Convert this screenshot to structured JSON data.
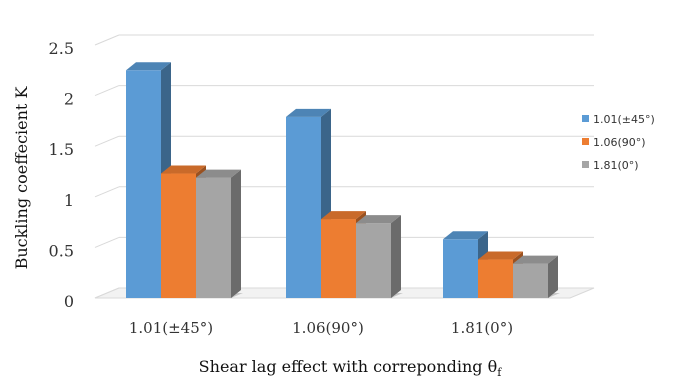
{
  "chart_data": {
    "type": "bar",
    "categories": [
      "1.01(±45°)",
      "1.06(90°)",
      "1.81(0°)"
    ],
    "series": [
      {
        "name": "1.01(±45°)",
        "values": [
          2.25,
          1.79,
          0.58
        ],
        "color": "#5B9BD5"
      },
      {
        "name": "1.06(90°)",
        "values": [
          1.23,
          0.78,
          0.38
        ],
        "color": "#ED7D31"
      },
      {
        "name": "1.81(0°)",
        "values": [
          1.19,
          0.74,
          0.34
        ],
        "color": "#A5A5A5"
      }
    ],
    "yticks": [
      "0",
      "0.5",
      "1",
      "1.5",
      "2",
      "2.5"
    ],
    "ylim": [
      0,
      2.5
    ],
    "ylabel": "Buckling coeffecient K",
    "xlabel": "Shear lag effect with correponding θ",
    "xlabel_subscript": "f",
    "grid": true,
    "legend_position": "right",
    "style": "3d-clustered-column"
  }
}
